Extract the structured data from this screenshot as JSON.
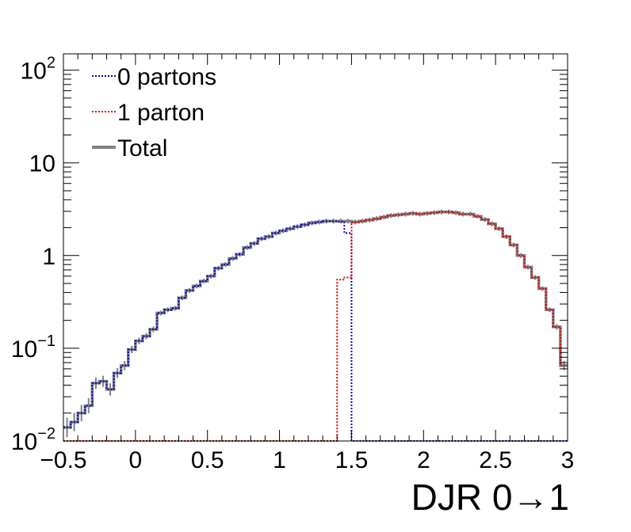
{
  "chart_data": {
    "type": "line",
    "step": true,
    "xlabel": "DJR 0→1",
    "ylabel": "",
    "xlim": [
      -0.5,
      3.0
    ],
    "ylim": [
      0.01,
      150
    ],
    "yscale": "log",
    "grid": false,
    "legend_position": "top-left",
    "x_ticks": [
      "−0.5",
      "0",
      "0.5",
      "1",
      "1.5",
      "2",
      "2.5",
      "3"
    ],
    "x_tick_values": [
      -0.5,
      0,
      0.5,
      1,
      1.5,
      2,
      2.5,
      3
    ],
    "y_ticks": [
      {
        "value": 0.01,
        "base": "10",
        "exp": "−2"
      },
      {
        "value": 0.1,
        "base": "10",
        "exp": "−1"
      },
      {
        "value": 1,
        "base": "1",
        "exp": ""
      },
      {
        "value": 10,
        "base": "10",
        "exp": ""
      },
      {
        "value": 100,
        "base": "10",
        "exp": "2"
      }
    ],
    "bins": {
      "start": -0.5,
      "width": 0.05,
      "count": 70
    },
    "series": [
      {
        "name": "0 partons",
        "color": "#0000cc",
        "dash": "dotted",
        "values": [
          0.014,
          0.016,
          0.02,
          0.024,
          0.042,
          0.044,
          0.036,
          0.054,
          0.065,
          0.097,
          0.12,
          0.135,
          0.16,
          0.24,
          0.26,
          0.27,
          0.35,
          0.42,
          0.47,
          0.53,
          0.6,
          0.73,
          0.8,
          0.93,
          1.03,
          1.22,
          1.35,
          1.52,
          1.6,
          1.75,
          1.85,
          1.95,
          2.05,
          2.15,
          2.25,
          2.3,
          2.35,
          2.35,
          2.32,
          1.75,
          0.01,
          0.01,
          0.01,
          0.01,
          0.01,
          0.01,
          0.01,
          0.01,
          0.01,
          0.01,
          0.01,
          0.01,
          0.01,
          0.01,
          0.01,
          0.01,
          0.01,
          0.01,
          0.01,
          0.01,
          0.01,
          0.01,
          0.01,
          0.01,
          0.01,
          0.01,
          0.01,
          0.01,
          0.01,
          0.01
        ]
      },
      {
        "name": "1 parton",
        "color": "#dd0000",
        "dash": "dotted",
        "values": [
          0.01,
          0.01,
          0.01,
          0.01,
          0.01,
          0.01,
          0.01,
          0.01,
          0.01,
          0.01,
          0.01,
          0.01,
          0.01,
          0.01,
          0.01,
          0.01,
          0.01,
          0.01,
          0.01,
          0.01,
          0.01,
          0.01,
          0.01,
          0.01,
          0.01,
          0.01,
          0.01,
          0.01,
          0.01,
          0.01,
          0.01,
          0.01,
          0.01,
          0.01,
          0.01,
          0.01,
          0.01,
          0.01,
          0.55,
          0.58,
          2.3,
          2.35,
          2.42,
          2.5,
          2.6,
          2.7,
          2.75,
          2.8,
          2.85,
          2.8,
          2.85,
          2.9,
          2.95,
          2.95,
          2.9,
          2.8,
          2.8,
          2.65,
          2.45,
          2.2,
          1.95,
          1.6,
          1.3,
          1.0,
          0.75,
          0.58,
          0.44,
          0.26,
          0.17,
          0.065
        ]
      },
      {
        "name": "Total",
        "color": "#808080",
        "dash": "solid",
        "values": [
          0.014,
          0.016,
          0.02,
          0.024,
          0.042,
          0.044,
          0.036,
          0.054,
          0.065,
          0.097,
          0.12,
          0.135,
          0.16,
          0.24,
          0.26,
          0.27,
          0.35,
          0.42,
          0.47,
          0.53,
          0.6,
          0.73,
          0.8,
          0.93,
          1.03,
          1.22,
          1.35,
          1.52,
          1.6,
          1.75,
          1.85,
          1.95,
          2.05,
          2.15,
          2.25,
          2.3,
          2.35,
          2.35,
          2.35,
          2.35,
          2.3,
          2.35,
          2.42,
          2.5,
          2.6,
          2.7,
          2.75,
          2.8,
          2.85,
          2.8,
          2.85,
          2.9,
          2.95,
          2.95,
          2.9,
          2.8,
          2.8,
          2.65,
          2.45,
          2.2,
          1.95,
          1.6,
          1.3,
          1.0,
          0.75,
          0.58,
          0.44,
          0.26,
          0.17,
          0.065
        ]
      }
    ],
    "legend": [
      {
        "label": "0 partons",
        "series": 0
      },
      {
        "label": "1 parton",
        "series": 1
      },
      {
        "label": "Total",
        "series": 2
      }
    ]
  }
}
